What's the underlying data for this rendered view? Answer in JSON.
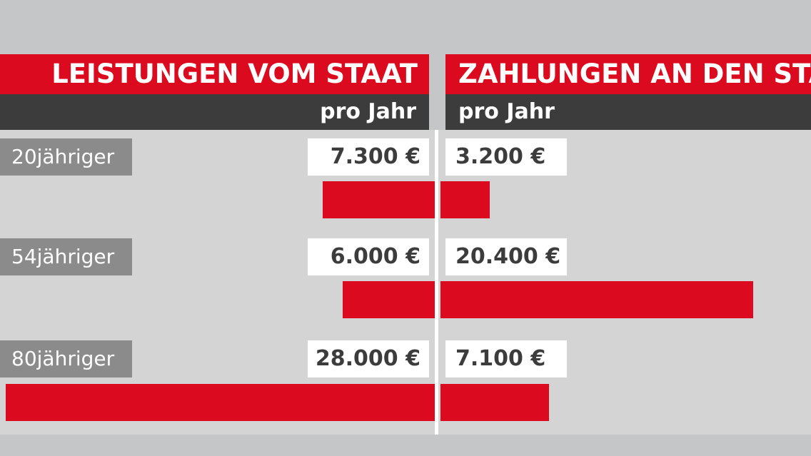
{
  "header": {
    "left_title": "LEISTUNGEN VOM STAAT",
    "right_title": "ZAHLUNGEN AN DEN STAAT",
    "left_subtitle": "pro Jahr",
    "right_subtitle": "pro Jahr"
  },
  "colors": {
    "bar": "#db0a1e",
    "header_dark": "#3c3c3c",
    "label_bg": "#8b8b8b",
    "panel_bg": "#d4d4d4",
    "page_bg": "#c5c6c8"
  },
  "chart_data": {
    "type": "bar",
    "orientation": "horizontal-diverging",
    "categories": [
      "20jähriger",
      "54jähriger",
      "80jähriger"
    ],
    "series": [
      {
        "name": "LEISTUNGEN VOM STAAT",
        "values": [
          7300,
          6000,
          28000
        ]
      },
      {
        "name": "ZAHLUNGEN AN DEN STAAT",
        "values": [
          3200,
          20400,
          7100
        ]
      }
    ],
    "value_labels": {
      "left": [
        "7.300 €",
        "6.000 €",
        "28.000 €"
      ],
      "right": [
        "3.200 €",
        "20.400 €",
        "7.100 €"
      ]
    },
    "unit": "€",
    "subtitle": "pro Jahr"
  }
}
